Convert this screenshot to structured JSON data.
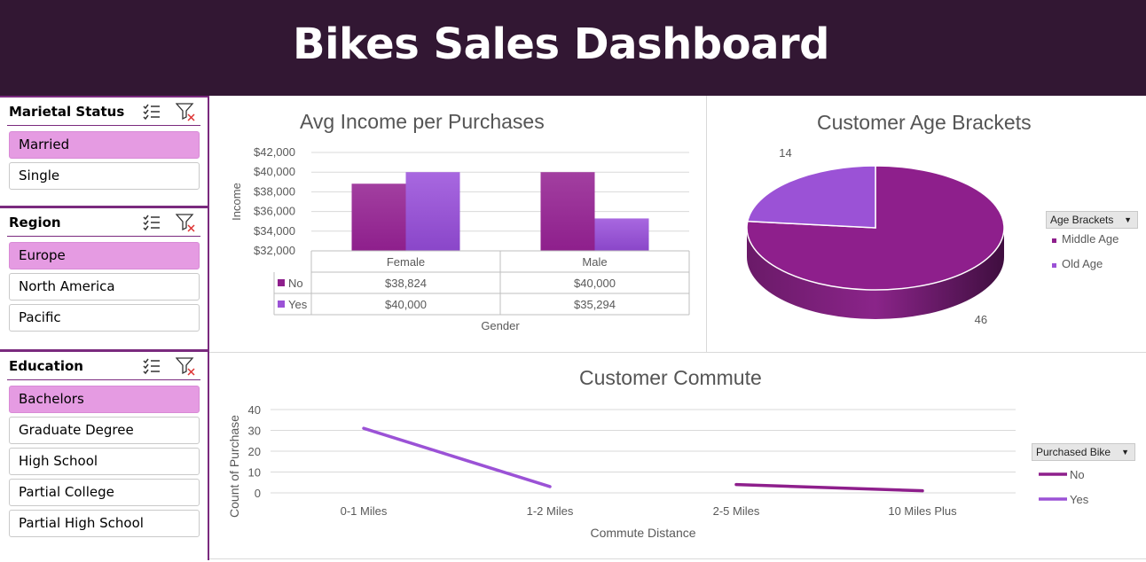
{
  "header": {
    "title": "Bikes Sales Dashboard"
  },
  "slicers": [
    {
      "title": "Marietal Status",
      "items": [
        {
          "label": "Married",
          "selected": true
        },
        {
          "label": "Single",
          "selected": false
        }
      ]
    },
    {
      "title": "Region",
      "items": [
        {
          "label": "Europe",
          "selected": true
        },
        {
          "label": "North America",
          "selected": false
        },
        {
          "label": "Pacific",
          "selected": false
        }
      ]
    },
    {
      "title": "Education",
      "items": [
        {
          "label": "Bachelors",
          "selected": true
        },
        {
          "label": "Graduate Degree",
          "selected": false
        },
        {
          "label": "High School",
          "selected": false
        },
        {
          "label": "Partial College",
          "selected": false
        },
        {
          "label": "Partial High School",
          "selected": false
        }
      ]
    }
  ],
  "icons": {
    "multiselect": "multi-select-icon",
    "clear_filter": "clear-filter-icon"
  },
  "colors": {
    "header_bg": "#321733",
    "no": "#8e1f8c",
    "yes": "#9b52d6",
    "selected_item": "#e59be2"
  },
  "chart_data": [
    {
      "type": "bar",
      "title": "Avg Income per Purchases",
      "xlabel": "Gender",
      "ylabel": "Income",
      "categories": [
        "Female",
        "Male"
      ],
      "series": [
        {
          "name": "No",
          "values": [
            38824,
            40000
          ],
          "labels": [
            "$38,824",
            "$40,000"
          ]
        },
        {
          "name": "Yes",
          "values": [
            40000,
            35294
          ],
          "labels": [
            "$40,000",
            "$35,294"
          ]
        }
      ],
      "ylim": [
        32000,
        42000
      ],
      "yticks": [
        "$32,000",
        "$34,000",
        "$36,000",
        "$38,000",
        "$40,000",
        "$42,000"
      ],
      "grid": true
    },
    {
      "type": "pie",
      "title": "Customer Age Brackets",
      "legend_title": "Age Brackets",
      "slices": [
        {
          "name": "Middle Age",
          "value": 46
        },
        {
          "name": "Old Age",
          "value": 14
        }
      ],
      "legend": "right"
    },
    {
      "type": "line",
      "title": "Customer Commute",
      "xlabel": "Commute Distance",
      "ylabel": "Count of Purchase",
      "legend_title": "Purchased Bike",
      "categories": [
        "0-1 Miles",
        "1-2 Miles",
        "2-5 Miles",
        "10 Miles Plus"
      ],
      "series": [
        {
          "name": "No",
          "values": [
            null,
            null,
            4,
            1
          ]
        },
        {
          "name": "Yes",
          "values": [
            31,
            3,
            null,
            null
          ]
        }
      ],
      "ylim": [
        0,
        40
      ],
      "yticks": [
        "0",
        "10",
        "20",
        "30",
        "40"
      ],
      "grid": true,
      "legend": "right"
    }
  ]
}
